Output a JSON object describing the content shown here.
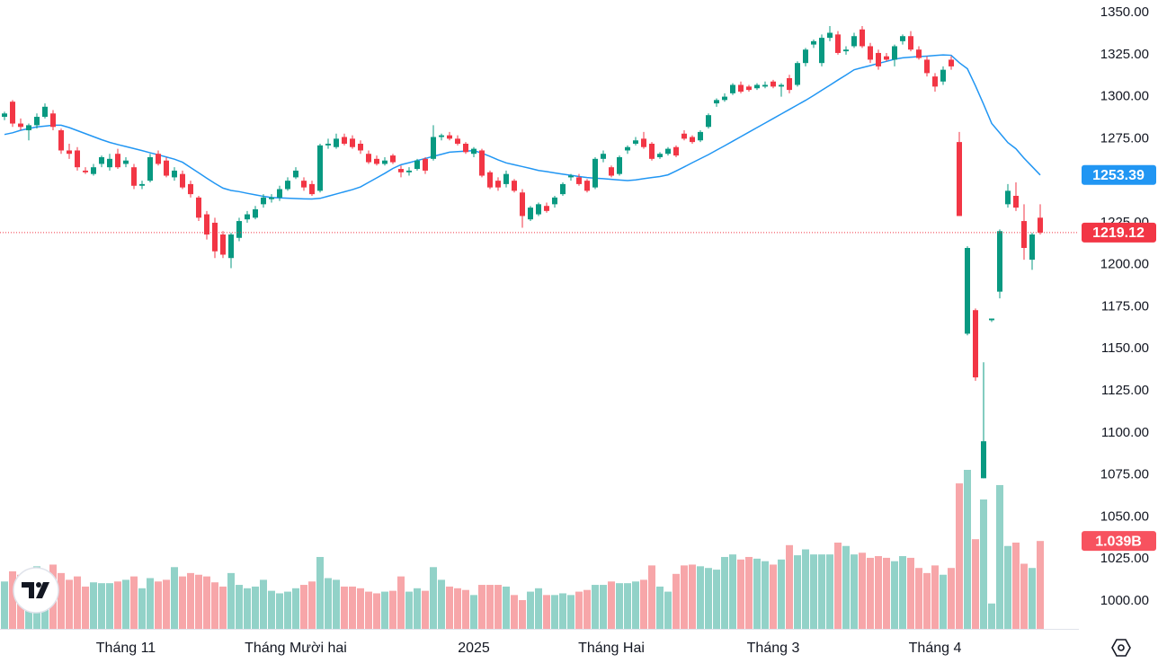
{
  "chart_data": {
    "type": "candlestick",
    "ylim": [
      983.4,
      1357.5
    ],
    "yticks": [
      {
        "value": 1000,
        "label": "1000.00"
      },
      {
        "value": 1025,
        "label": "1025.00"
      },
      {
        "value": 1050,
        "label": "1050.00"
      },
      {
        "value": 1075,
        "label": "1075.00"
      },
      {
        "value": 1100,
        "label": "1100.00"
      },
      {
        "value": 1125,
        "label": "1125.00"
      },
      {
        "value": 1150,
        "label": "1150.00"
      },
      {
        "value": 1175,
        "label": "1175.00"
      },
      {
        "value": 1200,
        "label": "1200.00"
      },
      {
        "value": 1225,
        "label": "1225.00"
      },
      {
        "value": 1250,
        "label": "1250.00"
      },
      {
        "value": 1275,
        "label": "1275.00"
      },
      {
        "value": 1300,
        "label": "1300.00"
      },
      {
        "value": 1325,
        "label": "1325.00"
      },
      {
        "value": 1350,
        "label": "1350.00"
      }
    ],
    "x_labels": [
      {
        "value": 15,
        "label": "Tháng 11"
      },
      {
        "value": 36,
        "label": "Tháng Mười hai"
      },
      {
        "value": 58,
        "label": "2025"
      },
      {
        "value": 75,
        "label": "Tháng Hai"
      },
      {
        "value": 95,
        "label": "Tháng 3"
      },
      {
        "value": 115,
        "label": "Tháng 4"
      }
    ],
    "up_color": "#089981",
    "down_color": "#f23645",
    "volume_up_color": "#92d2c8",
    "volume_down_color": "#f7a6a9",
    "ma_color": "#2196f3",
    "last_volume_color": "#f7525f",
    "candles": [
      [
        1288,
        1291,
        1286,
        1290
      ],
      [
        1297,
        1298,
        1282,
        1284
      ],
      [
        1284,
        1287,
        1280,
        1282
      ],
      [
        1280,
        1284,
        1274,
        1283
      ],
      [
        1283,
        1290,
        1281,
        1288
      ],
      [
        1288,
        1296,
        1287,
        1294
      ],
      [
        1290,
        1292,
        1280,
        1282
      ],
      [
        1280,
        1281,
        1266,
        1268
      ],
      [
        1268,
        1272,
        1263,
        1266
      ],
      [
        1268,
        1270,
        1256,
        1258
      ],
      [
        1256,
        1258,
        1254,
        1255
      ],
      [
        1254,
        1260,
        1253,
        1258
      ],
      [
        1260,
        1265,
        1258,
        1264
      ],
      [
        1258,
        1266,
        1256,
        1263
      ],
      [
        1266,
        1269,
        1257,
        1258
      ],
      [
        1260,
        1264,
        1258,
        1262
      ],
      [
        1258,
        1260,
        1245,
        1247
      ],
      [
        1247,
        1250,
        1245,
        1248
      ],
      [
        1250,
        1266,
        1249,
        1264
      ],
      [
        1266,
        1268,
        1259,
        1260
      ],
      [
        1262,
        1264,
        1252,
        1253
      ],
      [
        1252,
        1258,
        1250,
        1256
      ],
      [
        1254,
        1256,
        1245,
        1246
      ],
      [
        1248,
        1250,
        1240,
        1242
      ],
      [
        1240,
        1241,
        1226,
        1228
      ],
      [
        1230,
        1232,
        1215,
        1218
      ],
      [
        1225,
        1228,
        1204,
        1208
      ],
      [
        1218,
        1220,
        1204,
        1206
      ],
      [
        1204,
        1219,
        1198,
        1218
      ],
      [
        1216,
        1228,
        1214,
        1226
      ],
      [
        1227,
        1232,
        1225,
        1230
      ],
      [
        1228,
        1235,
        1227,
        1233
      ],
      [
        1236,
        1242,
        1234,
        1240
      ],
      [
        1239,
        1242,
        1237,
        1240
      ],
      [
        1240,
        1247,
        1238,
        1245
      ],
      [
        1245,
        1252,
        1244,
        1250
      ],
      [
        1252,
        1258,
        1251,
        1256
      ],
      [
        1250,
        1252,
        1244,
        1246
      ],
      [
        1248,
        1250,
        1241,
        1242
      ],
      [
        1244,
        1272,
        1243,
        1271
      ],
      [
        1271,
        1275,
        1269,
        1272
      ],
      [
        1270,
        1278,
        1269,
        1275
      ],
      [
        1276,
        1278,
        1271,
        1272
      ],
      [
        1275,
        1277,
        1269,
        1270
      ],
      [
        1272,
        1274,
        1266,
        1268
      ],
      [
        1266,
        1268,
        1260,
        1261
      ],
      [
        1263,
        1265,
        1259,
        1260
      ],
      [
        1260,
        1264,
        1259,
        1262
      ],
      [
        1265,
        1266,
        1260,
        1261
      ],
      [
        1257,
        1259,
        1252,
        1255
      ],
      [
        1255,
        1258,
        1253,
        1256
      ],
      [
        1257,
        1263,
        1256,
        1262
      ],
      [
        1263,
        1264,
        1254,
        1256
      ],
      [
        1263,
        1283,
        1262,
        1276
      ],
      [
        1276,
        1278,
        1274,
        1277
      ],
      [
        1277,
        1279,
        1274,
        1275
      ],
      [
        1275,
        1277,
        1271,
        1272
      ],
      [
        1272,
        1273,
        1266,
        1267
      ],
      [
        1266,
        1270,
        1264,
        1269
      ],
      [
        1268,
        1269,
        1252,
        1253
      ],
      [
        1255,
        1256,
        1245,
        1246
      ],
      [
        1250,
        1252,
        1244,
        1246
      ],
      [
        1248,
        1256,
        1246,
        1254
      ],
      [
        1250,
        1251,
        1243,
        1244
      ],
      [
        1243,
        1245,
        1222,
        1229
      ],
      [
        1227,
        1235,
        1226,
        1234
      ],
      [
        1230,
        1237,
        1229,
        1236
      ],
      [
        1235,
        1237,
        1231,
        1232
      ],
      [
        1236,
        1241,
        1234,
        1240
      ],
      [
        1242,
        1249,
        1241,
        1248
      ],
      [
        1252,
        1254,
        1250,
        1253
      ],
      [
        1252,
        1254,
        1247,
        1248
      ],
      [
        1250,
        1251,
        1243,
        1244
      ],
      [
        1246,
        1264,
        1245,
        1263
      ],
      [
        1263,
        1268,
        1261,
        1266
      ],
      [
        1258,
        1259,
        1252,
        1253
      ],
      [
        1254,
        1265,
        1253,
        1264
      ],
      [
        1268,
        1271,
        1266,
        1270
      ],
      [
        1272,
        1276,
        1271,
        1274
      ],
      [
        1275,
        1279,
        1269,
        1270
      ],
      [
        1272,
        1273,
        1262,
        1263
      ],
      [
        1264,
        1267,
        1263,
        1266
      ],
      [
        1266,
        1270,
        1265,
        1269
      ],
      [
        1270,
        1271,
        1264,
        1265
      ],
      [
        1278,
        1280,
        1274,
        1275
      ],
      [
        1276,
        1277,
        1272,
        1273
      ],
      [
        1274,
        1280,
        1273,
        1279
      ],
      [
        1282,
        1290,
        1281,
        1289
      ],
      [
        1296,
        1299,
        1294,
        1298
      ],
      [
        1298,
        1302,
        1297,
        1300
      ],
      [
        1302,
        1308,
        1301,
        1307
      ],
      [
        1307,
        1309,
        1302,
        1303
      ],
      [
        1306,
        1307,
        1303,
        1304
      ],
      [
        1305,
        1308,
        1304,
        1307
      ],
      [
        1306,
        1309,
        1305,
        1307
      ],
      [
        1309,
        1310,
        1305,
        1306
      ],
      [
        1306,
        1308,
        1300,
        1307
      ],
      [
        1311,
        1313,
        1302,
        1304
      ],
      [
        1307,
        1321,
        1306,
        1320
      ],
      [
        1320,
        1329,
        1318,
        1328
      ],
      [
        1331,
        1334,
        1329,
        1333
      ],
      [
        1320,
        1337,
        1318,
        1335
      ],
      [
        1335,
        1342,
        1333,
        1338
      ],
      [
        1337,
        1339,
        1325,
        1326
      ],
      [
        1327,
        1330,
        1325,
        1328
      ],
      [
        1330,
        1338,
        1329,
        1336
      ],
      [
        1340,
        1342,
        1329,
        1330
      ],
      [
        1330,
        1332,
        1320,
        1322
      ],
      [
        1326,
        1328,
        1316,
        1318
      ],
      [
        1324,
        1326,
        1321,
        1322
      ],
      [
        1322,
        1331,
        1318,
        1330
      ],
      [
        1333,
        1337,
        1331,
        1336
      ],
      [
        1336,
        1339,
        1327,
        1328
      ],
      [
        1328,
        1330,
        1322,
        1323
      ],
      [
        1322,
        1324,
        1312,
        1314
      ],
      [
        1312,
        1314,
        1303,
        1306
      ],
      [
        1309,
        1318,
        1307,
        1316
      ],
      [
        1322,
        1324,
        1316,
        1318
      ],
      [
        1273,
        1279,
        1229,
        1229
      ],
      [
        1159,
        1211,
        1158,
        1210
      ],
      [
        1173,
        1174,
        1131,
        1133
      ],
      [
        1073,
        1142,
        1073,
        1095
      ],
      [
        1167,
        1168,
        1166,
        1168
      ],
      [
        1184,
        1221,
        1180,
        1220
      ],
      [
        1236,
        1248,
        1234,
        1244
      ],
      [
        1241,
        1249,
        1232,
        1234
      ],
      [
        1226,
        1236,
        1203,
        1210
      ],
      [
        1203,
        1219,
        1197,
        1218
      ],
      [
        1228,
        1236,
        1218,
        1219.12
      ]
    ],
    "volume": [
      0.56,
      0.68,
      0.64,
      0.7,
      0.74,
      0.62,
      0.76,
      0.66,
      0.58,
      0.62,
      0.5,
      0.55,
      0.54,
      0.54,
      0.56,
      0.58,
      0.62,
      0.48,
      0.6,
      0.56,
      0.58,
      0.73,
      0.62,
      0.66,
      0.64,
      0.62,
      0.55,
      0.5,
      0.66,
      0.52,
      0.48,
      0.5,
      0.58,
      0.45,
      0.42,
      0.44,
      0.48,
      0.52,
      0.56,
      0.85,
      0.6,
      0.58,
      0.5,
      0.5,
      0.48,
      0.44,
      0.42,
      0.44,
      0.45,
      0.62,
      0.44,
      0.48,
      0.45,
      0.73,
      0.58,
      0.5,
      0.48,
      0.46,
      0.4,
      0.52,
      0.52,
      0.52,
      0.5,
      0.4,
      0.34,
      0.44,
      0.48,
      0.4,
      0.4,
      0.42,
      0.4,
      0.44,
      0.46,
      0.52,
      0.52,
      0.56,
      0.54,
      0.54,
      0.56,
      0.58,
      0.75,
      0.5,
      0.44,
      0.65,
      0.75,
      0.76,
      0.74,
      0.72,
      0.7,
      0.85,
      0.88,
      0.82,
      0.85,
      0.83,
      0.8,
      0.76,
      0.82,
      0.99,
      0.87,
      0.94,
      0.88,
      0.88,
      0.88,
      1.02,
      0.98,
      0.88,
      0.9,
      0.84,
      0.86,
      0.84,
      0.8,
      0.86,
      0.84,
      0.72,
      0.66,
      0.75,
      0.64,
      0.72,
      1.72,
      1.88,
      1.06,
      1.53,
      0.3,
      1.7,
      0.98,
      1.02,
      0.77,
      0.72,
      1.039
    ],
    "last_volume_label": "1.039B",
    "ma": [
      1277.5,
      1278.5,
      1280,
      1281,
      1282,
      1282.5,
      1283,
      1283,
      1281.6,
      1279.8,
      1278,
      1276.2,
      1274.4,
      1272.8,
      1271.5,
      1270.3,
      1269.1,
      1267.9,
      1266.6,
      1265.4,
      1264.1,
      1262.8,
      1261,
      1257.8,
      1254.7,
      1251.5,
      1248.4,
      1245.6,
      1244.2,
      1243.5,
      1242.5,
      1241.6,
      1240.7,
      1240,
      1239.8,
      1239.6,
      1239.4,
      1239.2,
      1239.1,
      1239.5,
      1240.8,
      1242.1,
      1243.4,
      1244.7,
      1246.3,
      1249,
      1251.7,
      1254.4,
      1257.3,
      1259.5,
      1260.7,
      1262,
      1263.2,
      1264.5,
      1265.7,
      1267,
      1267.3,
      1267.6,
      1267.9,
      1266.4,
      1264.5,
      1262.4,
      1260.6,
      1259.5,
      1258.4,
      1257.3,
      1256.1,
      1255.4,
      1254.6,
      1253.9,
      1253.2,
      1252.5,
      1251.9,
      1251.5,
      1251.2,
      1250.8,
      1250.4,
      1250.1,
      1250.5,
      1251.2,
      1251.9,
      1252.5,
      1253.5,
      1255.8,
      1258.2,
      1260.7,
      1263.1,
      1265.5,
      1268.2,
      1270.8,
      1273.5,
      1276.2,
      1278.9,
      1281.6,
      1284.3,
      1287,
      1289.7,
      1292.4,
      1295.1,
      1297.8,
      1300.7,
      1303.8,
      1306.8,
      1309.9,
      1312.9,
      1316,
      1317.3,
      1318.5,
      1319.8,
      1321,
      1322.3,
      1323.1,
      1323.5,
      1323.8,
      1324.1,
      1324.5,
      1324.8,
      1324.6,
      1320.2,
      1316.6,
      1306.4,
      1295.5,
      1284.1,
      1278.4,
      1272.7,
      1269,
      1263.4,
      1258.4,
      1253.39
    ]
  }
}
